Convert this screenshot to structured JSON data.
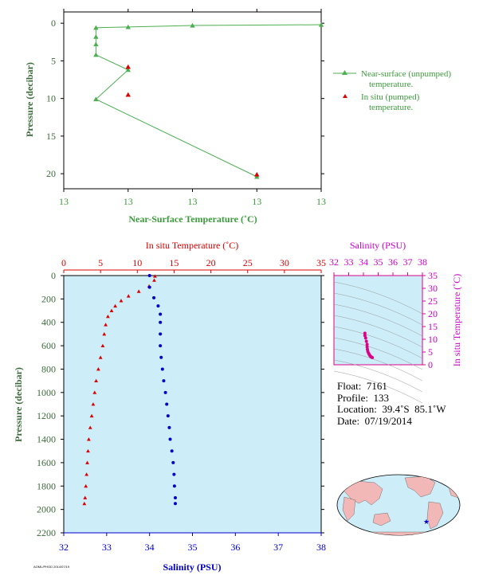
{
  "chart_data": [
    {
      "type": "line",
      "xlabel": "Near-Surface Temperature (˚C)",
      "ylabel": "Pressure (decibar)",
      "x_tick_labels": [
        "13",
        "13",
        "13",
        "13",
        "13"
      ],
      "y_ticks": [
        0,
        5,
        10,
        15,
        20
      ],
      "xlim": [
        12.4,
        12.8
      ],
      "ylim": [
        22,
        -1.5
      ],
      "grid": false,
      "legend_position": "right",
      "series": [
        {
          "name": "Near-surface (unpumped) temperature.",
          "color": "#4caf50",
          "marker": "triangle",
          "points": [
            [
              12.8,
              0.2
            ],
            [
              12.6,
              0.3
            ],
            [
              12.5,
              0.5
            ],
            [
              12.45,
              0.6
            ],
            [
              12.45,
              1.8
            ],
            [
              12.45,
              2.8
            ],
            [
              12.45,
              4.2
            ],
            [
              12.5,
              6.2
            ],
            [
              12.45,
              10.1
            ],
            [
              12.7,
              20.4
            ]
          ]
        },
        {
          "name": "In situ (pumped) temperature.",
          "color": "#dd0000",
          "marker": "triangle",
          "points": [
            [
              12.5,
              5.8
            ],
            [
              12.5,
              9.5
            ],
            [
              12.7,
              20.1
            ]
          ]
        }
      ]
    },
    {
      "type": "scatter",
      "top_axis_label": "In situ Temperature (˚C)",
      "bottom_axis_label": "Salinity (PSU)",
      "ylabel": "Pressure (decibar)",
      "temperature_ticks": [
        0,
        5,
        10,
        15,
        20,
        25,
        30,
        35
      ],
      "salinity_ticks": [
        32,
        33,
        34,
        35,
        36,
        37,
        38
      ],
      "pressure_ticks": [
        0,
        200,
        400,
        600,
        800,
        1000,
        1200,
        1400,
        1600,
        1800,
        2000,
        2200
      ],
      "temperature_range": [
        0,
        35
      ],
      "salinity_range": [
        32,
        38
      ],
      "pressure_range": [
        2200,
        0
      ],
      "background": "#cdeef8",
      "temperature_color": "#dd0000",
      "salinity_color": "#0000cc",
      "temperature_profile": [
        [
          12.4,
          5
        ],
        [
          12.3,
          40
        ],
        [
          11.6,
          90
        ],
        [
          10.2,
          135
        ],
        [
          8.8,
          175
        ],
        [
          7.8,
          215
        ],
        [
          7.0,
          260
        ],
        [
          6.5,
          300
        ],
        [
          6.0,
          350
        ],
        [
          5.7,
          420
        ],
        [
          5.5,
          500
        ],
        [
          5.3,
          600
        ],
        [
          5.0,
          700
        ],
        [
          4.7,
          800
        ],
        [
          4.4,
          900
        ],
        [
          4.2,
          1000
        ],
        [
          4.0,
          1100
        ],
        [
          3.8,
          1200
        ],
        [
          3.6,
          1300
        ],
        [
          3.4,
          1400
        ],
        [
          3.3,
          1500
        ],
        [
          3.2,
          1600
        ],
        [
          3.1,
          1700
        ],
        [
          3.0,
          1800
        ],
        [
          2.9,
          1900
        ],
        [
          2.8,
          1950
        ]
      ],
      "salinity_profile": [
        [
          34.0,
          0
        ],
        [
          34.0,
          100
        ],
        [
          34.1,
          190
        ],
        [
          34.2,
          260
        ],
        [
          34.25,
          330
        ],
        [
          34.25,
          400
        ],
        [
          34.25,
          500
        ],
        [
          34.25,
          600
        ],
        [
          34.27,
          700
        ],
        [
          34.3,
          800
        ],
        [
          34.33,
          900
        ],
        [
          34.37,
          1000
        ],
        [
          34.4,
          1100
        ],
        [
          34.43,
          1200
        ],
        [
          34.46,
          1300
        ],
        [
          34.48,
          1400
        ],
        [
          34.52,
          1500
        ],
        [
          34.55,
          1600
        ],
        [
          34.57,
          1700
        ],
        [
          34.58,
          1800
        ],
        [
          34.6,
          1900
        ],
        [
          34.6,
          1950
        ]
      ]
    },
    {
      "type": "scatter",
      "top_axis_label": "Salinity (PSU)",
      "right_axis_label": "In situ Temperature (˚C)",
      "salinity_ticks": [
        32,
        33,
        34,
        35,
        36,
        37,
        38
      ],
      "temperature_ticks": [
        0,
        5,
        10,
        15,
        20,
        25,
        30,
        35
      ],
      "salinity_range": [
        32,
        38
      ],
      "temperature_range": [
        0,
        35
      ],
      "color": "#dd0088",
      "points": [
        [
          34.1,
          12.4
        ],
        [
          34.1,
          11.5
        ],
        [
          34.15,
          10.5
        ],
        [
          34.2,
          9.2
        ],
        [
          34.25,
          8.0
        ],
        [
          34.25,
          7.0
        ],
        [
          34.27,
          6.0
        ],
        [
          34.3,
          5.2
        ],
        [
          34.35,
          4.5
        ],
        [
          34.4,
          4.0
        ],
        [
          34.45,
          3.5
        ],
        [
          34.5,
          3.2
        ],
        [
          34.55,
          3.0
        ],
        [
          34.6,
          2.8
        ]
      ]
    }
  ],
  "info": {
    "float": "Float:  7161",
    "profile": "Profile:  133",
    "location": "Location:  39.4˚S  85.1˚W",
    "date": "Date:  07/19/2014"
  },
  "credit": "AOML/PHOD 2014/07/19",
  "map": {
    "ocean_color": "#cdeef8",
    "land_color": "#f2b8b8",
    "marker_color": "#0000cc",
    "float_position": {
      "lat": -39.4,
      "lon": -85.1
    }
  }
}
